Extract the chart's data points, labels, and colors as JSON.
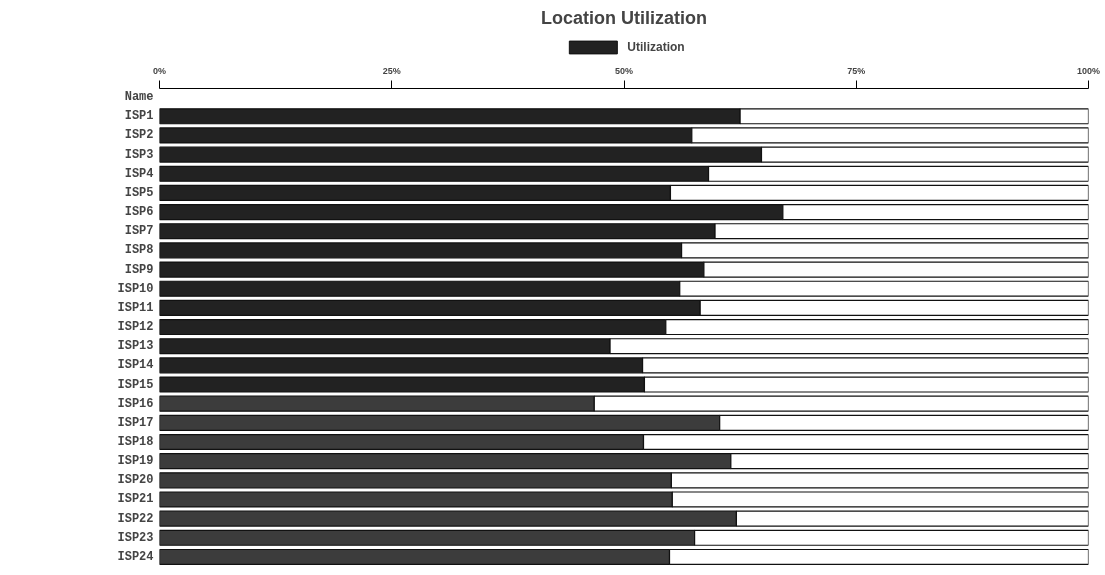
{
  "chart_data": {
    "type": "bar",
    "orientation": "horizontal",
    "stacked": true,
    "title": "Location Utilization",
    "ylabel": "Name",
    "categories": [
      "ISP1",
      "ISP2",
      "ISP3",
      "ISP4",
      "ISP5",
      "ISP6",
      "ISP7",
      "ISP8",
      "ISP9",
      "ISP10",
      "ISP11",
      "ISP12",
      "ISP13",
      "ISP14",
      "ISP15",
      "ISP16",
      "ISP17",
      "ISP18",
      "ISP19",
      "ISP20",
      "ISP21",
      "ISP22",
      "ISP23",
      "ISP24"
    ],
    "series": [
      {
        "name": "Utilization",
        "color": "#222222",
        "colors": [
          "#222222",
          "#222222",
          "#222222",
          "#222222",
          "#222222",
          "#222222",
          "#222222",
          "#222222",
          "#222222",
          "#222222",
          "#222222",
          "#222222",
          "#222222",
          "#222222",
          "#222222",
          "#3c3c3c",
          "#3c3c3c",
          "#3c3c3c",
          "#3c3c3c",
          "#3c3c3c",
          "#3c3c3c",
          "#3c3c3c",
          "#3c3c3c",
          "#3c3c3c"
        ],
        "values": [
          62.5,
          57.3,
          64.8,
          59.1,
          55.0,
          67.1,
          59.8,
          56.2,
          58.6,
          56.0,
          58.2,
          54.5,
          48.5,
          52.0,
          52.2,
          46.8,
          60.3,
          52.1,
          61.5,
          55.1,
          55.2,
          62.1,
          57.6,
          54.9
        ]
      },
      {
        "color": "#ffffff",
        "values": [
          37.5,
          42.7,
          35.2,
          40.9,
          45.0,
          32.9,
          40.2,
          43.8,
          41.4,
          44.0,
          41.8,
          45.5,
          51.5,
          48.0,
          47.8,
          53.2,
          39.7,
          47.9,
          38.5,
          44.9,
          44.8,
          37.9,
          42.4,
          45.1
        ]
      }
    ],
    "xlim": [
      0,
      100
    ],
    "xticks": [
      {
        "value": 0,
        "label": "0%"
      },
      {
        "value": 25,
        "label": "25%"
      },
      {
        "value": 50,
        "label": "50%"
      },
      {
        "value": 75,
        "label": "75%"
      },
      {
        "value": 100,
        "label": "100%"
      }
    ],
    "grid": false,
    "legend": "top"
  }
}
